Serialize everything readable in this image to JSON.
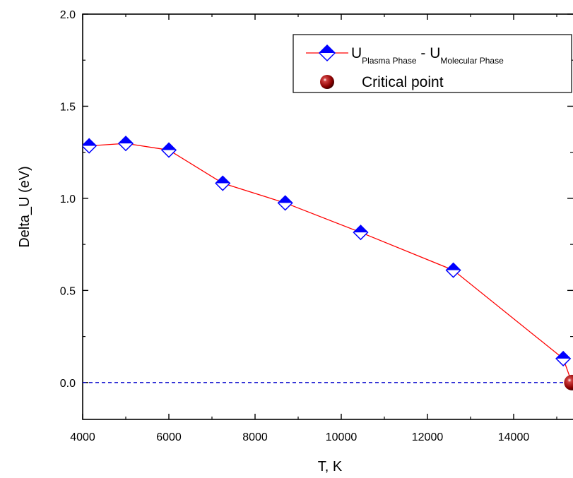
{
  "chart_data": {
    "type": "line",
    "xlabel": "T, K",
    "ylabel": "Delta_U (eV)",
    "xlim": [
      4000,
      15400
    ],
    "ylim": [
      -0.2,
      2.0
    ],
    "xticks": [
      4000,
      6000,
      8000,
      10000,
      12000,
      14000
    ],
    "xtick_labels": [
      "4000",
      "6000",
      "8000",
      "10000",
      "12000",
      "14000"
    ],
    "yticks": [
      0.0,
      0.5,
      1.0,
      1.5,
      2.0
    ],
    "ytick_labels": [
      "0.0",
      "0.5",
      "1.0",
      "1.5",
      "2.0"
    ],
    "grid": false,
    "legend_position": "top-right",
    "series": [
      {
        "name_parts": {
          "main1": "U",
          "sub1": "Plasma Phase",
          "sep": " - ",
          "main2": "U",
          "sub2": "Molecular Phase"
        },
        "color": "#ff0000",
        "marker_color": "#0000ff",
        "marker": "half-filled-diamond",
        "x": [
          4150,
          5000,
          6000,
          7250,
          8700,
          10450,
          12600,
          15150,
          15350
        ],
        "y": [
          1.285,
          1.298,
          1.262,
          1.082,
          0.975,
          0.815,
          0.61,
          0.13,
          0.0
        ]
      }
    ],
    "critical_point": {
      "name": "Critical point",
      "x": 15350,
      "y": 0.0,
      "color": "#8b0000"
    },
    "reference_line": {
      "y": 0.0,
      "style": "dashed",
      "color": "#0000cc"
    }
  }
}
